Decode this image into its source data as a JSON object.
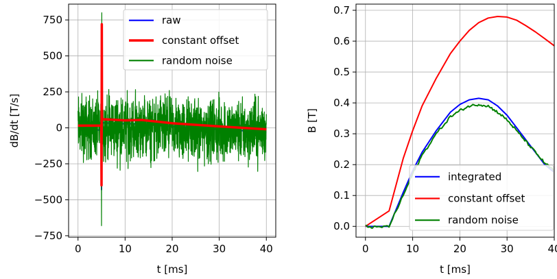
{
  "chart_data": [
    {
      "type": "line",
      "xlabel": "t [ms]",
      "ylabel": "dB/dt [T/s]",
      "xlim": [
        -2,
        42
      ],
      "ylim": [
        -760,
        860
      ],
      "xticks": [
        0,
        10,
        20,
        30,
        40
      ],
      "yticks": [
        -750,
        -500,
        -250,
        0,
        250,
        500,
        750
      ],
      "xtick_labels": [
        "0",
        "10",
        "20",
        "30",
        "40"
      ],
      "ytick_labels": [
        "−750",
        "−500",
        "−250",
        "0",
        "250",
        "500",
        "750"
      ],
      "grid": true,
      "legend": "top-right",
      "series": [
        {
          "name": "raw",
          "color": "#0000ff",
          "x": [
            0,
            4.95,
            5.0,
            5.05,
            5.1,
            5.2,
            10,
            13.5,
            20,
            30,
            40
          ],
          "y": [
            -15,
            -15,
            -430,
            700,
            30,
            35,
            28,
            30,
            10,
            -10,
            -30
          ]
        },
        {
          "name": "constant offset",
          "color": "#ff0000",
          "x": [
            0,
            4.95,
            5.0,
            5.05,
            5.1,
            5.2,
            10,
            13.5,
            20,
            30,
            40
          ],
          "y": [
            15,
            15,
            -400,
            720,
            55,
            60,
            52,
            55,
            32,
            10,
            -10
          ]
        },
        {
          "name": "random noise",
          "color": "#008000",
          "x": [
            0,
            4.95,
            5.0,
            5.05,
            5.1,
            40
          ],
          "y": [
            0,
            0,
            -680,
            800,
            0,
            -25
          ],
          "noise_amplitude": 280
        }
      ]
    },
    {
      "type": "line",
      "xlabel": "t [ms]",
      "ylabel": "B [T]",
      "xlim": [
        -2,
        40
      ],
      "ylim": [
        -0.035,
        0.72
      ],
      "xticks": [
        0,
        10,
        20,
        30,
        40
      ],
      "yticks": [
        0.0,
        0.1,
        0.2,
        0.3,
        0.4,
        0.5,
        0.6,
        0.7
      ],
      "xtick_labels": [
        "0",
        "10",
        "20",
        "30",
        "40"
      ],
      "ytick_labels": [
        "0.0",
        "0.1",
        "0.2",
        "0.3",
        "0.4",
        "0.5",
        "0.6",
        "0.7"
      ],
      "grid": true,
      "legend": "lower-right",
      "series": [
        {
          "name": "integrated",
          "color": "#0000ff",
          "x": [
            0,
            2,
            5,
            8,
            10,
            12,
            15,
            18,
            20,
            22,
            24,
            26,
            28,
            30,
            32,
            34,
            36,
            38,
            40
          ],
          "y": [
            0.0,
            0.0,
            0.0,
            0.11,
            0.18,
            0.24,
            0.31,
            0.37,
            0.395,
            0.41,
            0.415,
            0.41,
            0.39,
            0.36,
            0.32,
            0.28,
            0.24,
            0.2,
            0.175
          ]
        },
        {
          "name": "constant offset",
          "color": "#ff0000",
          "x": [
            0,
            5,
            8,
            10,
            12,
            15,
            18,
            20,
            22,
            24,
            26,
            28,
            30,
            32,
            34,
            36,
            38,
            40
          ],
          "y": [
            0.0,
            0.05,
            0.22,
            0.31,
            0.39,
            0.48,
            0.56,
            0.6,
            0.635,
            0.66,
            0.675,
            0.68,
            0.678,
            0.668,
            0.65,
            0.63,
            0.608,
            0.585
          ]
        },
        {
          "name": "random noise",
          "color": "#008000",
          "x": [
            0,
            2,
            5,
            8,
            10,
            12,
            15,
            18,
            20,
            22,
            24,
            26,
            28,
            30,
            32,
            34,
            36,
            38,
            40
          ],
          "y": [
            0.0,
            -0.003,
            0.0,
            0.1,
            0.17,
            0.23,
            0.3,
            0.355,
            0.375,
            0.39,
            0.395,
            0.39,
            0.37,
            0.345,
            0.31,
            0.275,
            0.24,
            0.205,
            0.18
          ]
        }
      ]
    }
  ]
}
